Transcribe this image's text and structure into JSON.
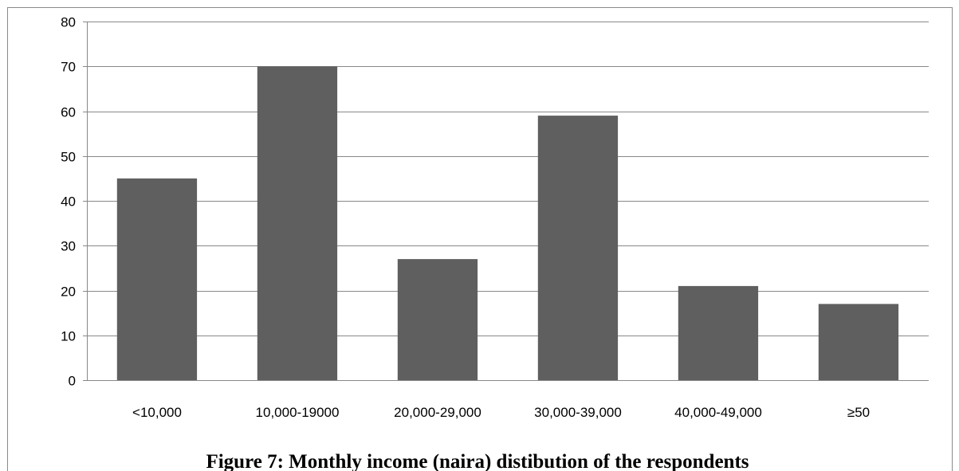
{
  "chart_data": {
    "type": "bar",
    "categories": [
      "<10,000",
      "10,000-19000",
      "20,000-29,000",
      "30,000-39,000",
      "40,000-49,000",
      "≥50"
    ],
    "values": [
      45,
      70,
      27,
      59,
      21,
      17
    ],
    "title": "",
    "xlabel": "",
    "ylabel": "",
    "ylim": [
      0,
      80
    ],
    "yticks": [
      0,
      10,
      20,
      30,
      40,
      50,
      60,
      70,
      80
    ],
    "grid": true,
    "legend": "none",
    "bar_color": "#5f5f5f",
    "grid_color": "#888888"
  },
  "caption": "Figure 7: Monthly income (naira) distibution of the respondents"
}
